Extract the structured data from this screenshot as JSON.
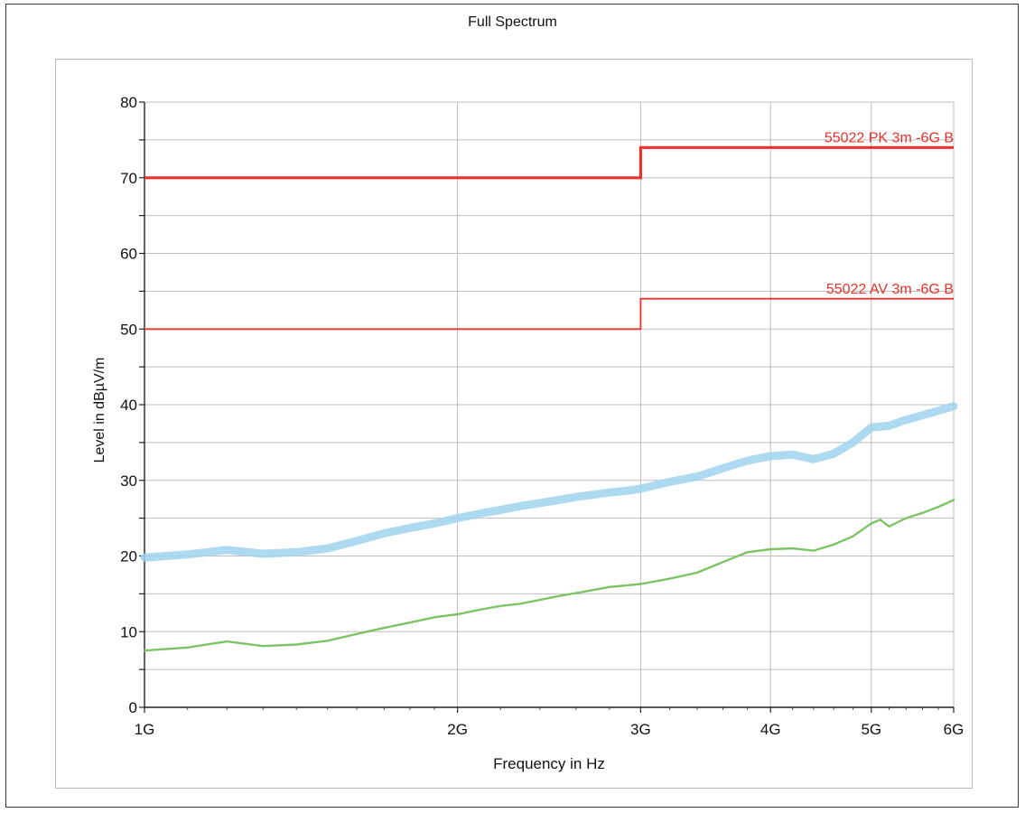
{
  "chart_data": {
    "type": "line",
    "title": "Full Spectrum",
    "xlabel": "Frequency in Hz",
    "ylabel": "Level in dBµV/m",
    "x_scale": "log",
    "xlim": [
      1000000000,
      6000000000
    ],
    "ylim": [
      0,
      80
    ],
    "x_ticks": [
      {
        "value": 1000000000,
        "label": "1G"
      },
      {
        "value": 2000000000,
        "label": "2G"
      },
      {
        "value": 3000000000,
        "label": "3G"
      },
      {
        "value": 4000000000,
        "label": "4G"
      },
      {
        "value": 5000000000,
        "label": "5G"
      },
      {
        "value": 6000000000,
        "label": "6G"
      }
    ],
    "y_ticks": [
      0,
      10,
      20,
      30,
      40,
      50,
      60,
      70,
      80
    ],
    "grid": true,
    "limit_lines": [
      {
        "name": "55022 PK 3m -6G B",
        "color": "#e8322a",
        "points": [
          [
            1000000000,
            70
          ],
          [
            3000000000,
            70
          ],
          [
            3000000000,
            74
          ],
          [
            6000000000,
            74
          ]
        ]
      },
      {
        "name": "55022 AV 3m -6G B",
        "color": "#e8322a",
        "points": [
          [
            1000000000,
            50
          ],
          [
            3000000000,
            50
          ],
          [
            3000000000,
            54
          ],
          [
            6000000000,
            54
          ]
        ]
      }
    ],
    "series": [
      {
        "color": "#9fd3ef",
        "x": [
          1000000000,
          1100000000,
          1200000000,
          1300000000,
          1400000000,
          1500000000,
          1600000000,
          1700000000,
          1800000000,
          1900000000,
          2000000000,
          2100000000,
          2200000000,
          2300000000,
          2400000000,
          2500000000,
          2600000000,
          2700000000,
          2800000000,
          2900000000,
          3000000000,
          3200000000,
          3400000000,
          3600000000,
          3800000000,
          4000000000,
          4200000000,
          4400000000,
          4600000000,
          4800000000,
          5000000000,
          5200000000,
          5400000000,
          5600000000,
          5800000000,
          6000000000
        ],
        "values": [
          19.8,
          20.2,
          20.8,
          20.3,
          20.5,
          21.0,
          22.0,
          23.0,
          23.7,
          24.3,
          25.0,
          25.6,
          26.1,
          26.6,
          27.0,
          27.4,
          27.8,
          28.1,
          28.4,
          28.6,
          28.9,
          29.8,
          30.5,
          31.6,
          32.6,
          33.2,
          33.4,
          32.8,
          33.5,
          35.0,
          37.0,
          37.2,
          38.0,
          38.6,
          39.2,
          39.8
        ]
      },
      {
        "color": "#7cc465",
        "x": [
          1000000000,
          1100000000,
          1200000000,
          1300000000,
          1400000000,
          1500000000,
          1600000000,
          1700000000,
          1800000000,
          1900000000,
          2000000000,
          2100000000,
          2200000000,
          2300000000,
          2400000000,
          2500000000,
          2600000000,
          2700000000,
          2800000000,
          2900000000,
          3000000000,
          3200000000,
          3400000000,
          3600000000,
          3800000000,
          4000000000,
          4200000000,
          4400000000,
          4600000000,
          4800000000,
          5000000000,
          5100000000,
          5200000000,
          5400000000,
          5600000000,
          5800000000,
          6000000000
        ],
        "values": [
          7.5,
          7.9,
          8.7,
          8.1,
          8.3,
          8.8,
          9.7,
          10.5,
          11.2,
          11.9,
          12.3,
          12.9,
          13.4,
          13.7,
          14.2,
          14.7,
          15.1,
          15.5,
          15.9,
          16.1,
          16.3,
          17.0,
          17.8,
          19.2,
          20.5,
          20.9,
          21.0,
          20.7,
          21.5,
          22.6,
          24.3,
          24.8,
          23.9,
          25.0,
          25.7,
          26.5,
          27.4
        ]
      }
    ]
  }
}
